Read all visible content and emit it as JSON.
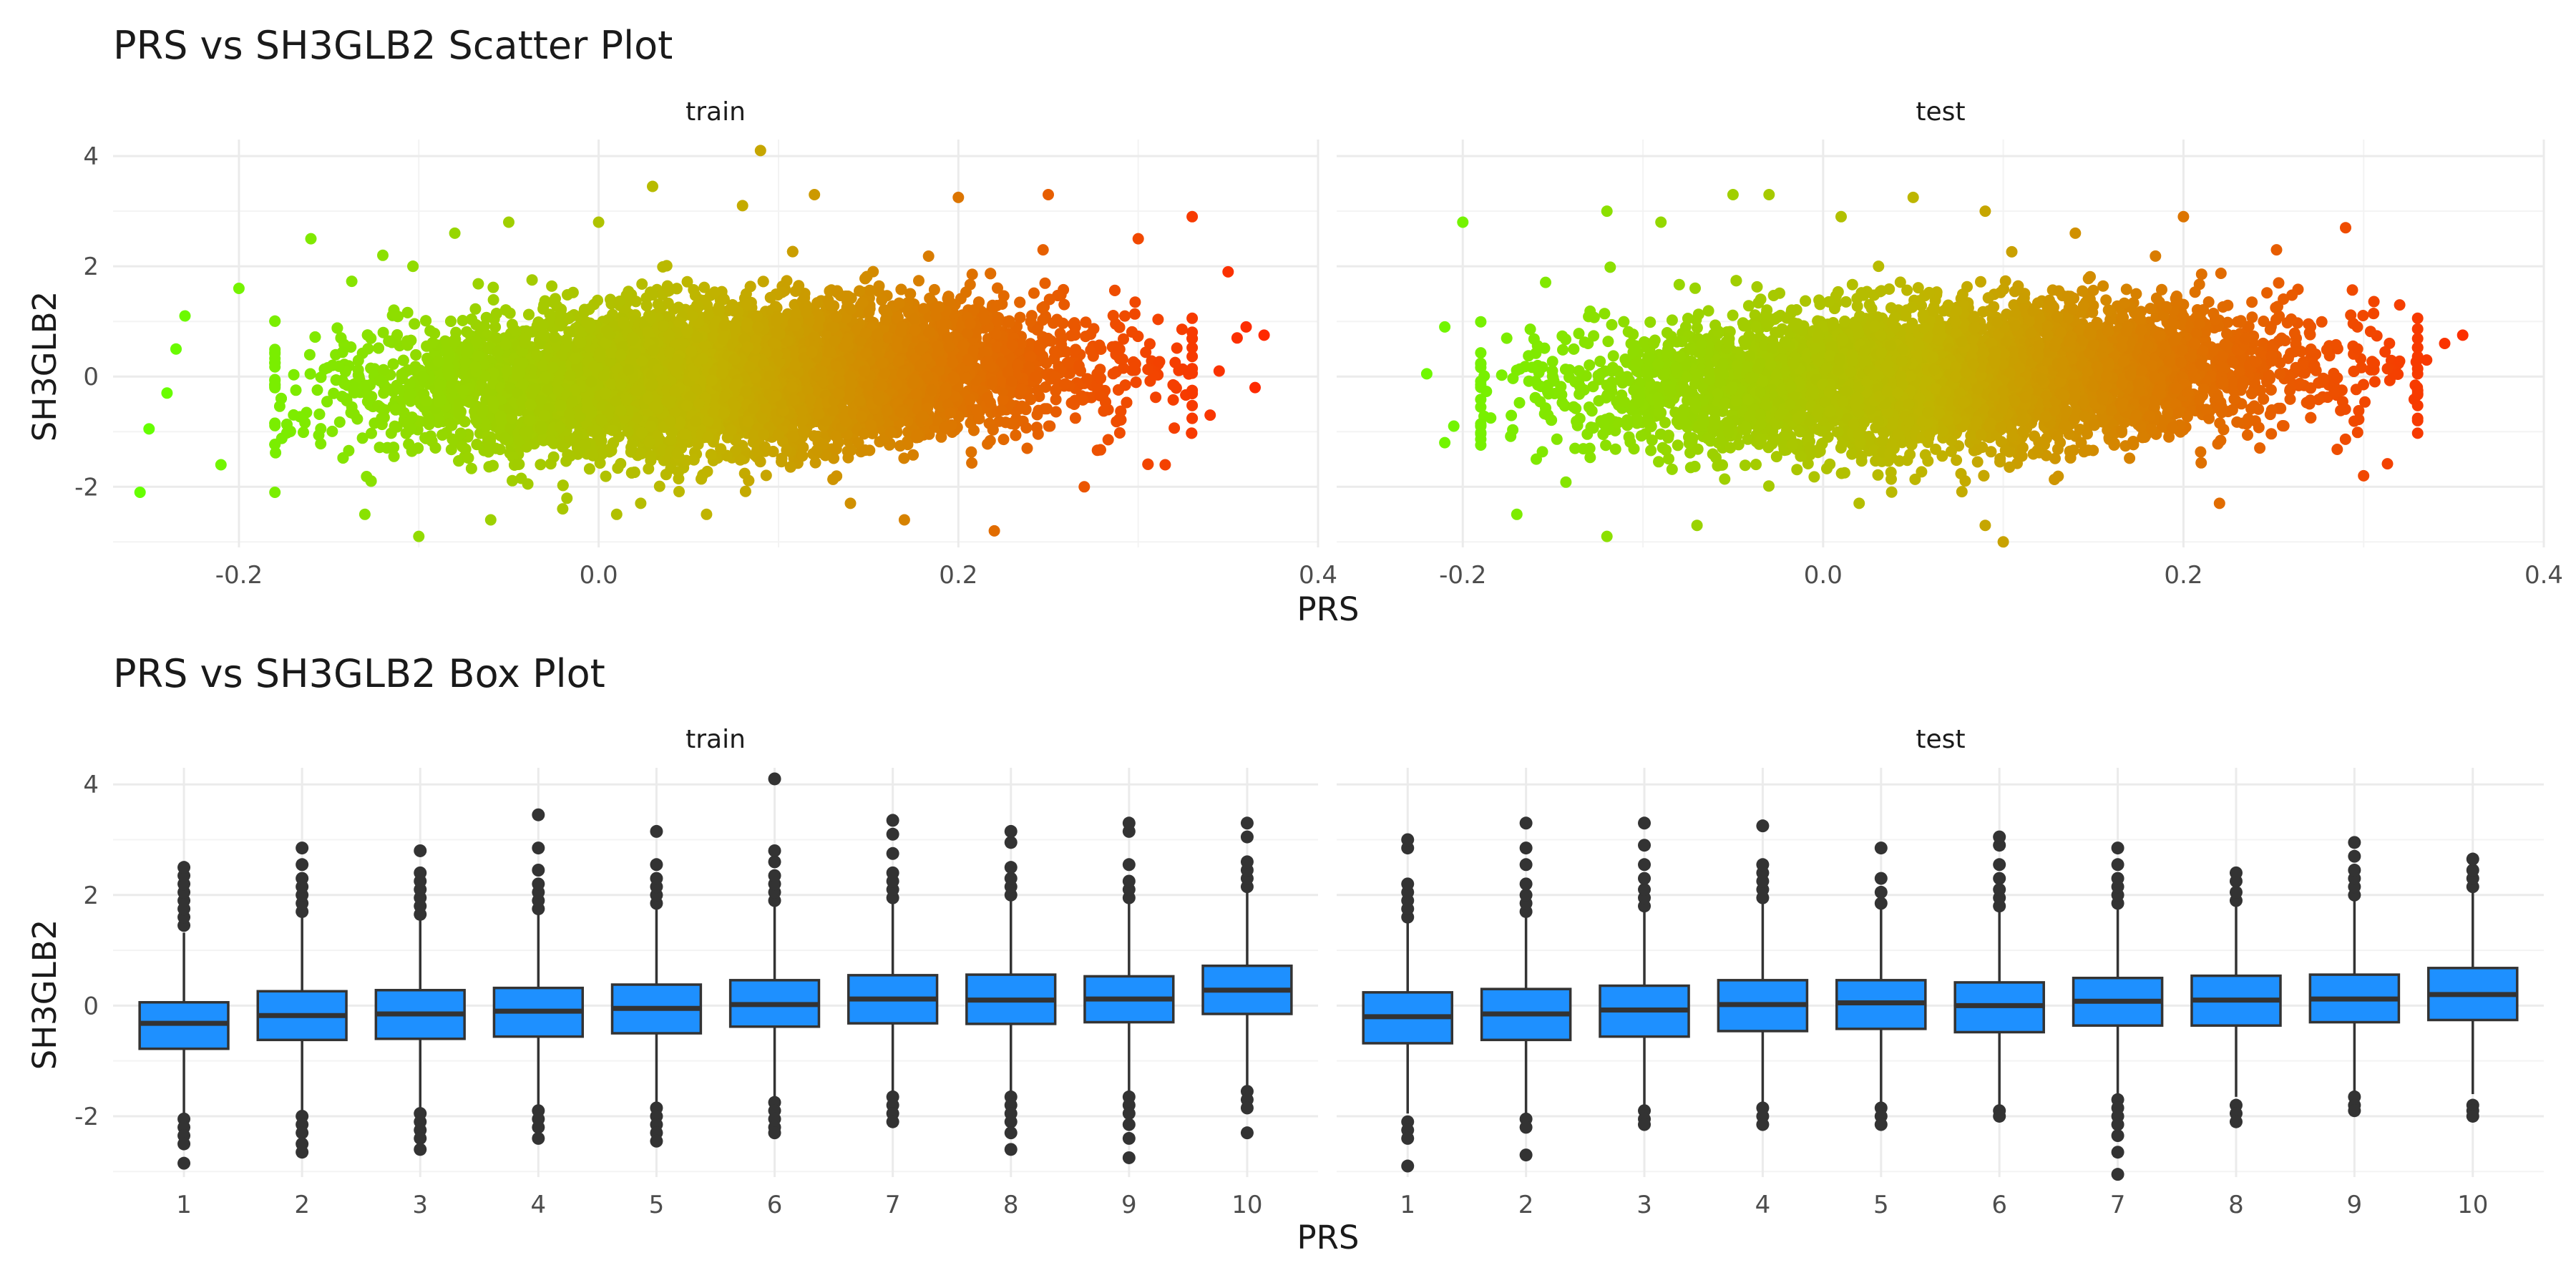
{
  "chart_data": [
    {
      "type": "scatter",
      "title": "PRS vs SH3GLB2 Scatter Plot",
      "xlabel": "PRS",
      "ylabel": "SH3GLB2",
      "xlim": [
        -0.27,
        0.4
      ],
      "ylim": [
        -3.1,
        4.3
      ],
      "x_ticks": [
        "-0.2",
        "0.0",
        "0.2",
        "0.4"
      ],
      "y_ticks": [
        "-2",
        "0",
        "2",
        "4"
      ],
      "x_tick_values": [
        -0.2,
        0.0,
        0.2,
        0.4
      ],
      "y_tick_values": [
        -2,
        0,
        2,
        4
      ],
      "grid": true,
      "legend": "none",
      "color_gradient": {
        "low": "#66ff00",
        "mid": "#c0b400",
        "high": "#ff2800"
      },
      "facets": [
        {
          "name": "train",
          "density": {
            "x_mean": 0.075,
            "x_sd": 0.09,
            "x_range": [
              -0.18,
              0.33
            ],
            "y_sd": 0.62,
            "y_slope": 1.2,
            "n": 9000
          },
          "points": [
            {
              "x": -0.255,
              "y": -2.1
            },
            {
              "x": -0.25,
              "y": -0.95
            },
            {
              "x": -0.24,
              "y": -0.3
            },
            {
              "x": -0.235,
              "y": 0.5
            },
            {
              "x": -0.23,
              "y": 1.1
            },
            {
              "x": -0.21,
              "y": -1.6
            },
            {
              "x": -0.2,
              "y": 1.6
            },
            {
              "x": -0.18,
              "y": -2.1
            },
            {
              "x": -0.16,
              "y": 2.5
            },
            {
              "x": -0.13,
              "y": -2.5
            },
            {
              "x": -0.12,
              "y": 2.2
            },
            {
              "x": -0.1,
              "y": -2.9
            },
            {
              "x": -0.08,
              "y": 2.6
            },
            {
              "x": -0.06,
              "y": -2.6
            },
            {
              "x": -0.05,
              "y": 2.8
            },
            {
              "x": -0.02,
              "y": -2.4
            },
            {
              "x": 0.0,
              "y": 2.8
            },
            {
              "x": 0.01,
              "y": -2.5
            },
            {
              "x": 0.03,
              "y": 3.45
            },
            {
              "x": 0.06,
              "y": -2.5
            },
            {
              "x": 0.08,
              "y": 3.1
            },
            {
              "x": 0.09,
              "y": 4.1
            },
            {
              "x": 0.12,
              "y": 3.3
            },
            {
              "x": 0.14,
              "y": -2.3
            },
            {
              "x": 0.17,
              "y": -2.6
            },
            {
              "x": 0.2,
              "y": 3.25
            },
            {
              "x": 0.22,
              "y": -2.8
            },
            {
              "x": 0.25,
              "y": 3.3
            },
            {
              "x": 0.27,
              "y": -2.0
            },
            {
              "x": 0.3,
              "y": 2.5
            },
            {
              "x": 0.315,
              "y": -1.6
            },
            {
              "x": 0.33,
              "y": 2.9
            },
            {
              "x": 0.34,
              "y": -0.7
            },
            {
              "x": 0.35,
              "y": 1.9
            },
            {
              "x": 0.36,
              "y": 0.9
            },
            {
              "x": 0.365,
              "y": -0.2
            },
            {
              "x": 0.37,
              "y": 0.75
            },
            {
              "x": 0.355,
              "y": 0.7
            },
            {
              "x": 0.345,
              "y": 0.1
            }
          ]
        },
        {
          "name": "test",
          "density": {
            "x_mean": 0.07,
            "x_sd": 0.095,
            "x_range": [
              -0.19,
              0.33
            ],
            "y_sd": 0.62,
            "y_slope": 1.2,
            "n": 5500
          },
          "points": [
            {
              "x": -0.21,
              "y": 0.9
            },
            {
              "x": -0.2,
              "y": 2.8
            },
            {
              "x": -0.21,
              "y": -1.2
            },
            {
              "x": -0.205,
              "y": -0.9
            },
            {
              "x": -0.22,
              "y": 0.05
            },
            {
              "x": -0.17,
              "y": -2.5
            },
            {
              "x": -0.12,
              "y": 3.0
            },
            {
              "x": -0.12,
              "y": -2.9
            },
            {
              "x": -0.09,
              "y": 2.8
            },
            {
              "x": -0.07,
              "y": -2.7
            },
            {
              "x": -0.05,
              "y": 3.3
            },
            {
              "x": -0.03,
              "y": 3.3
            },
            {
              "x": 0.01,
              "y": 2.9
            },
            {
              "x": 0.02,
              "y": -2.3
            },
            {
              "x": 0.05,
              "y": 3.25
            },
            {
              "x": 0.09,
              "y": 3.0
            },
            {
              "x": 0.09,
              "y": -2.7
            },
            {
              "x": 0.1,
              "y": -3.0
            },
            {
              "x": 0.14,
              "y": 2.6
            },
            {
              "x": 0.2,
              "y": 2.9
            },
            {
              "x": 0.22,
              "y": -2.3
            },
            {
              "x": 0.29,
              "y": 2.7
            },
            {
              "x": 0.3,
              "y": -1.8
            },
            {
              "x": 0.32,
              "y": 1.3
            },
            {
              "x": 0.335,
              "y": 0.3
            },
            {
              "x": 0.345,
              "y": 0.6
            },
            {
              "x": 0.355,
              "y": 0.75
            },
            {
              "x": 0.33,
              "y": -0.8
            }
          ]
        }
      ]
    },
    {
      "type": "box",
      "title": "PRS vs SH3GLB2 Box Plot",
      "xlabel": "PRS",
      "ylabel": "SH3GLB2",
      "ylim": [
        -3.1,
        4.3
      ],
      "y_ticks": [
        "-2",
        "0",
        "2",
        "4"
      ],
      "y_tick_values": [
        -2,
        0,
        2,
        4
      ],
      "categories": [
        "1",
        "2",
        "3",
        "4",
        "5",
        "6",
        "7",
        "8",
        "9",
        "10"
      ],
      "fill_color": "#1e90ff",
      "grid": true,
      "legend": "none",
      "facets": [
        {
          "name": "train",
          "boxes": [
            {
              "q1": -0.78,
              "median": -0.32,
              "q3": 0.06,
              "lower": -1.95,
              "upper": 1.32,
              "outliers_high": [
                1.45,
                1.6,
                1.75,
                1.9,
                2.05,
                2.2,
                2.35,
                2.5
              ],
              "outliers_low": [
                -2.05,
                -2.2,
                -2.35,
                -2.5,
                -2.85
              ]
            },
            {
              "q1": -0.62,
              "median": -0.18,
              "q3": 0.26,
              "lower": -1.95,
              "upper": 1.6,
              "outliers_high": [
                1.7,
                1.85,
                2.0,
                2.15,
                2.3,
                2.55,
                2.85
              ],
              "outliers_low": [
                -2.0,
                -2.15,
                -2.3,
                -2.5,
                -2.65
              ]
            },
            {
              "q1": -0.6,
              "median": -0.15,
              "q3": 0.28,
              "lower": -1.9,
              "upper": 1.55,
              "outliers_high": [
                1.65,
                1.8,
                1.95,
                2.1,
                2.25,
                2.4,
                2.8
              ],
              "outliers_low": [
                -1.95,
                -2.1,
                -2.25,
                -2.4,
                -2.6
              ]
            },
            {
              "q1": -0.56,
              "median": -0.1,
              "q3": 0.32,
              "lower": -1.85,
              "upper": 1.65,
              "outliers_high": [
                1.75,
                1.9,
                2.05,
                2.2,
                2.45,
                2.85,
                3.45
              ],
              "outliers_low": [
                -1.9,
                -2.05,
                -2.2,
                -2.4
              ]
            },
            {
              "q1": -0.5,
              "median": -0.05,
              "q3": 0.38,
              "lower": -1.8,
              "upper": 1.75,
              "outliers_high": [
                1.85,
                2.0,
                2.15,
                2.3,
                2.55,
                3.15
              ],
              "outliers_low": [
                -1.85,
                -2.0,
                -2.15,
                -2.3,
                -2.45
              ]
            },
            {
              "q1": -0.38,
              "median": 0.02,
              "q3": 0.46,
              "lower": -1.65,
              "upper": 1.8,
              "outliers_high": [
                1.9,
                2.05,
                2.2,
                2.35,
                2.6,
                2.8,
                4.1
              ],
              "outliers_low": [
                -1.75,
                -1.9,
                -2.05,
                -2.2,
                -2.3
              ]
            },
            {
              "q1": -0.32,
              "median": 0.12,
              "q3": 0.55,
              "lower": -1.6,
              "upper": 1.85,
              "outliers_high": [
                1.95,
                2.1,
                2.25,
                2.4,
                2.75,
                3.1,
                3.35
              ],
              "outliers_low": [
                -1.65,
                -1.8,
                -1.95,
                -2.1
              ]
            },
            {
              "q1": -0.33,
              "median": 0.1,
              "q3": 0.56,
              "lower": -1.6,
              "upper": 1.9,
              "outliers_high": [
                2.0,
                2.15,
                2.3,
                2.5,
                2.95,
                3.15
              ],
              "outliers_low": [
                -1.65,
                -1.8,
                -1.95,
                -2.1,
                -2.3,
                -2.6
              ]
            },
            {
              "q1": -0.3,
              "median": 0.12,
              "q3": 0.53,
              "lower": -1.55,
              "upper": 1.85,
              "outliers_high": [
                1.95,
                2.1,
                2.25,
                2.55,
                3.15,
                3.3
              ],
              "outliers_low": [
                -1.65,
                -1.8,
                -1.95,
                -2.15,
                -2.4,
                -2.75
              ]
            },
            {
              "q1": -0.15,
              "median": 0.28,
              "q3": 0.72,
              "lower": -1.5,
              "upper": 2.05,
              "outliers_high": [
                2.15,
                2.3,
                2.45,
                2.6,
                3.05,
                3.3
              ],
              "outliers_low": [
                -1.55,
                -1.7,
                -1.85,
                -2.3
              ]
            }
          ]
        },
        {
          "name": "test",
          "boxes": [
            {
              "q1": -0.68,
              "median": -0.2,
              "q3": 0.24,
              "lower": -1.95,
              "upper": 1.5,
              "outliers_high": [
                1.6,
                1.75,
                1.9,
                2.05,
                2.2,
                2.85,
                3.0
              ],
              "outliers_low": [
                -2.1,
                -2.25,
                -2.4,
                -2.9
              ]
            },
            {
              "q1": -0.62,
              "median": -0.15,
              "q3": 0.3,
              "lower": -1.95,
              "upper": 1.6,
              "outliers_high": [
                1.7,
                1.85,
                2.0,
                2.2,
                2.55,
                2.85,
                3.3
              ],
              "outliers_low": [
                -2.05,
                -2.2,
                -2.7
              ]
            },
            {
              "q1": -0.56,
              "median": -0.08,
              "q3": 0.36,
              "lower": -1.8,
              "upper": 1.7,
              "outliers_high": [
                1.8,
                1.95,
                2.1,
                2.3,
                2.55,
                2.9,
                3.3
              ],
              "outliers_low": [
                -1.9,
                -2.05,
                -2.15
              ]
            },
            {
              "q1": -0.46,
              "median": 0.02,
              "q3": 0.46,
              "lower": -1.75,
              "upper": 1.85,
              "outliers_high": [
                1.95,
                2.1,
                2.25,
                2.4,
                2.55,
                3.25
              ],
              "outliers_low": [
                -1.85,
                -2.0,
                -2.15
              ]
            },
            {
              "q1": -0.42,
              "median": 0.05,
              "q3": 0.46,
              "lower": -1.75,
              "upper": 1.75,
              "outliers_high": [
                1.85,
                2.05,
                2.3,
                2.85
              ],
              "outliers_low": [
                -1.85,
                -2.0,
                -2.15
              ]
            },
            {
              "q1": -0.48,
              "median": 0.0,
              "q3": 0.42,
              "lower": -1.8,
              "upper": 1.7,
              "outliers_high": [
                1.8,
                1.95,
                2.1,
                2.3,
                2.55,
                2.9,
                3.05
              ],
              "outliers_low": [
                -1.9,
                -2.0
              ]
            },
            {
              "q1": -0.36,
              "median": 0.08,
              "q3": 0.5,
              "lower": -1.6,
              "upper": 1.75,
              "outliers_high": [
                1.85,
                2.0,
                2.15,
                2.3,
                2.55,
                2.85
              ],
              "outliers_low": [
                -1.7,
                -1.85,
                -2.0,
                -2.15,
                -2.35,
                -2.65,
                -3.05
              ]
            },
            {
              "q1": -0.36,
              "median": 0.1,
              "q3": 0.54,
              "lower": -1.65,
              "upper": 1.8,
              "outliers_high": [
                1.9,
                2.05,
                2.25,
                2.4
              ],
              "outliers_low": [
                -1.8,
                -1.95,
                -2.1
              ]
            },
            {
              "q1": -0.3,
              "median": 0.12,
              "q3": 0.56,
              "lower": -1.6,
              "upper": 1.9,
              "outliers_high": [
                2.0,
                2.15,
                2.3,
                2.45,
                2.7,
                2.95
              ],
              "outliers_low": [
                -1.65,
                -1.8,
                -1.9
              ]
            },
            {
              "q1": -0.26,
              "median": 0.2,
              "q3": 0.68,
              "lower": -1.6,
              "upper": 2.05,
              "outliers_high": [
                2.15,
                2.3,
                2.45,
                2.65
              ],
              "outliers_low": [
                -1.8,
                -1.9,
                -2.0
              ]
            }
          ]
        }
      ]
    }
  ]
}
